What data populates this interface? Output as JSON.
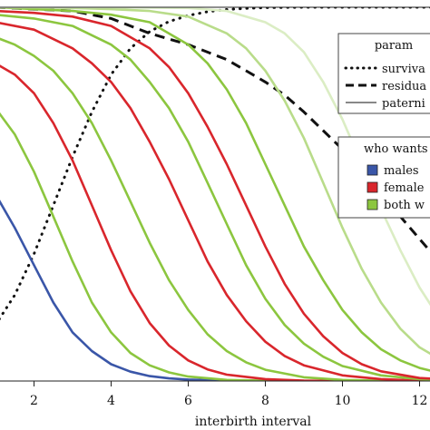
{
  "chart_data": {
    "type": "line",
    "title": "",
    "xlabel": "interbirth interval",
    "ylabel": "",
    "xlim": [
      1.0,
      13.2
    ],
    "ylim": [
      0,
      1
    ],
    "x_ticks": [
      "2",
      "4",
      "6",
      "8",
      "10",
      "12"
    ],
    "legends": [
      {
        "title": "param",
        "placement": "right, upper",
        "entries": [
          {
            "label": "surviva",
            "style": "dotted"
          },
          {
            "label": "residua",
            "style": "dashed"
          },
          {
            "label": "paterni",
            "style": "solid-thin"
          }
        ]
      },
      {
        "title": "who wants",
        "placement": "right, middle",
        "entries": [
          {
            "label": "males",
            "color": "#3a56a8"
          },
          {
            "label": "female",
            "color": "#d9262c"
          },
          {
            "label": "both w",
            "color": "#8cc63f"
          }
        ]
      }
    ],
    "series": [
      {
        "name": "surviva",
        "style": "dotted",
        "color": "#111111",
        "x": [
          1.0,
          1.5,
          2.0,
          2.5,
          3.0,
          3.5,
          4.0,
          4.5,
          5.0,
          5.5,
          6.0,
          6.5,
          7.0,
          7.5,
          8.0,
          9.0,
          10.0,
          11.0,
          12.0,
          13.2
        ],
        "y": [
          0.15,
          0.23,
          0.34,
          0.47,
          0.6,
          0.72,
          0.82,
          0.89,
          0.935,
          0.962,
          0.978,
          0.988,
          0.994,
          0.997,
          0.999,
          1.0,
          1.0,
          1.0,
          1.0,
          1.0
        ]
      },
      {
        "name": "residua",
        "style": "dashed",
        "color": "#111111",
        "x": [
          1.0,
          2.0,
          3.0,
          4.0,
          5.0,
          6.0,
          7.0,
          7.5,
          8.0,
          8.5,
          9.0,
          9.5,
          10.0,
          10.5,
          11.0,
          11.5,
          12.0,
          12.5,
          13.2
        ],
        "y": [
          1.0,
          0.995,
          0.99,
          0.97,
          0.93,
          0.9,
          0.86,
          0.83,
          0.8,
          0.765,
          0.72,
          0.67,
          0.62,
          0.56,
          0.5,
          0.44,
          0.38,
          0.32,
          0.24
        ]
      },
      {
        "color": "#3a56a8",
        "style": "solid",
        "x": [
          1.0,
          1.5,
          2.0,
          2.5,
          3.0,
          3.5,
          4.0,
          4.5,
          5.0,
          5.5,
          6.0,
          7.0,
          8.0,
          9.0,
          10.0,
          11.0,
          12.0,
          13.2
        ],
        "y": [
          0.5,
          0.41,
          0.31,
          0.21,
          0.13,
          0.08,
          0.045,
          0.025,
          0.013,
          0.007,
          0.004,
          0.001,
          0.0,
          0.0,
          0.0,
          0.0,
          0.0,
          0.0
        ]
      },
      {
        "color": "#8cc63f",
        "style": "solid",
        "x": [
          1.0,
          1.5,
          2.0,
          2.5,
          3.0,
          3.5,
          4.0,
          4.5,
          5.0,
          5.5,
          6.0,
          7.0,
          8.0,
          9.0,
          10.0,
          11.0,
          12.0,
          13.2
        ],
        "y": [
          0.73,
          0.66,
          0.56,
          0.44,
          0.32,
          0.21,
          0.13,
          0.075,
          0.042,
          0.023,
          0.012,
          0.003,
          0.001,
          0.0,
          0.0,
          0.0,
          0.0,
          0.0
        ]
      },
      {
        "color": "#d9262c",
        "style": "solid",
        "x": [
          1.0,
          1.5,
          2.0,
          2.5,
          3.0,
          3.5,
          4.0,
          4.5,
          5.0,
          5.5,
          6.0,
          6.5,
          7.0,
          8.0,
          9.0,
          10.0,
          11.0,
          12.0,
          13.2
        ],
        "y": [
          0.85,
          0.82,
          0.77,
          0.69,
          0.59,
          0.47,
          0.35,
          0.24,
          0.155,
          0.095,
          0.055,
          0.031,
          0.017,
          0.005,
          0.001,
          0.0,
          0.0,
          0.0,
          0.0
        ]
      },
      {
        "color": "#8cc63f",
        "style": "solid",
        "x": [
          1.0,
          1.5,
          2.0,
          2.5,
          3.0,
          3.5,
          4.0,
          4.5,
          5.0,
          5.5,
          6.0,
          6.5,
          7.0,
          7.5,
          8.0,
          9.0,
          10.0,
          11.0,
          12.0,
          13.2
        ],
        "y": [
          0.92,
          0.9,
          0.87,
          0.83,
          0.77,
          0.69,
          0.59,
          0.48,
          0.37,
          0.27,
          0.19,
          0.125,
          0.08,
          0.05,
          0.03,
          0.01,
          0.003,
          0.001,
          0.0,
          0.0
        ]
      },
      {
        "color": "#d9262c",
        "style": "solid",
        "x": [
          1.0,
          2.0,
          3.0,
          3.5,
          4.0,
          4.5,
          5.0,
          5.5,
          6.0,
          6.5,
          7.0,
          7.5,
          8.0,
          8.5,
          9.0,
          10.0,
          11.0,
          12.0,
          13.2
        ],
        "y": [
          0.96,
          0.94,
          0.89,
          0.85,
          0.8,
          0.73,
          0.64,
          0.54,
          0.43,
          0.32,
          0.23,
          0.16,
          0.105,
          0.067,
          0.042,
          0.015,
          0.005,
          0.001,
          0.0
        ]
      },
      {
        "color": "#8cc63f",
        "style": "solid",
        "x": [
          1.0,
          2.0,
          3.0,
          4.0,
          4.5,
          5.0,
          5.5,
          6.0,
          6.5,
          7.0,
          7.5,
          8.0,
          8.5,
          9.0,
          9.5,
          10.0,
          11.0,
          12.0,
          13.2
        ],
        "y": [
          0.98,
          0.97,
          0.95,
          0.9,
          0.86,
          0.8,
          0.73,
          0.64,
          0.53,
          0.42,
          0.31,
          0.22,
          0.15,
          0.1,
          0.065,
          0.04,
          0.015,
          0.005,
          0.001
        ]
      },
      {
        "color": "#d9262c",
        "style": "solid",
        "x": [
          1.0,
          2.0,
          3.0,
          4.0,
          5.0,
          5.5,
          6.0,
          6.5,
          7.0,
          7.5,
          8.0,
          8.5,
          9.0,
          9.5,
          10.0,
          10.5,
          11.0,
          12.0,
          13.2
        ],
        "y": [
          0.99,
          0.985,
          0.975,
          0.95,
          0.89,
          0.84,
          0.77,
          0.68,
          0.58,
          0.47,
          0.36,
          0.26,
          0.18,
          0.12,
          0.075,
          0.045,
          0.026,
          0.008,
          0.002
        ]
      },
      {
        "color": "#8cc63f",
        "style": "solid",
        "x": [
          1.0,
          2.0,
          3.0,
          4.0,
          5.0,
          6.0,
          6.5,
          7.0,
          7.5,
          8.0,
          8.5,
          9.0,
          9.5,
          10.0,
          10.5,
          11.0,
          11.5,
          12.0,
          12.5,
          13.2
        ],
        "y": [
          1.0,
          0.995,
          0.99,
          0.98,
          0.96,
          0.9,
          0.85,
          0.78,
          0.69,
          0.58,
          0.47,
          0.36,
          0.27,
          0.19,
          0.13,
          0.085,
          0.055,
          0.035,
          0.022,
          0.012
        ]
      },
      {
        "color": "#b9dc8a",
        "style": "solid",
        "x": [
          1.0,
          2.0,
          3.0,
          4.0,
          5.0,
          6.0,
          7.0,
          7.5,
          8.0,
          8.5,
          9.0,
          9.5,
          10.0,
          10.5,
          11.0,
          11.5,
          12.0,
          12.5,
          13.2
        ],
        "y": [
          1.0,
          1.0,
          0.998,
          0.995,
          0.99,
          0.975,
          0.93,
          0.89,
          0.83,
          0.75,
          0.65,
          0.53,
          0.41,
          0.3,
          0.21,
          0.14,
          0.09,
          0.06,
          0.035
        ]
      },
      {
        "color": "#dbedc4",
        "style": "solid",
        "x": [
          1.0,
          2.0,
          4.0,
          6.0,
          7.0,
          8.0,
          8.5,
          9.0,
          9.5,
          10.0,
          10.5,
          11.0,
          11.5,
          12.0,
          12.5,
          13.2
        ],
        "y": [
          1.0,
          1.0,
          1.0,
          0.998,
          0.99,
          0.96,
          0.93,
          0.88,
          0.8,
          0.7,
          0.58,
          0.46,
          0.35,
          0.25,
          0.17,
          0.1
        ]
      }
    ]
  }
}
